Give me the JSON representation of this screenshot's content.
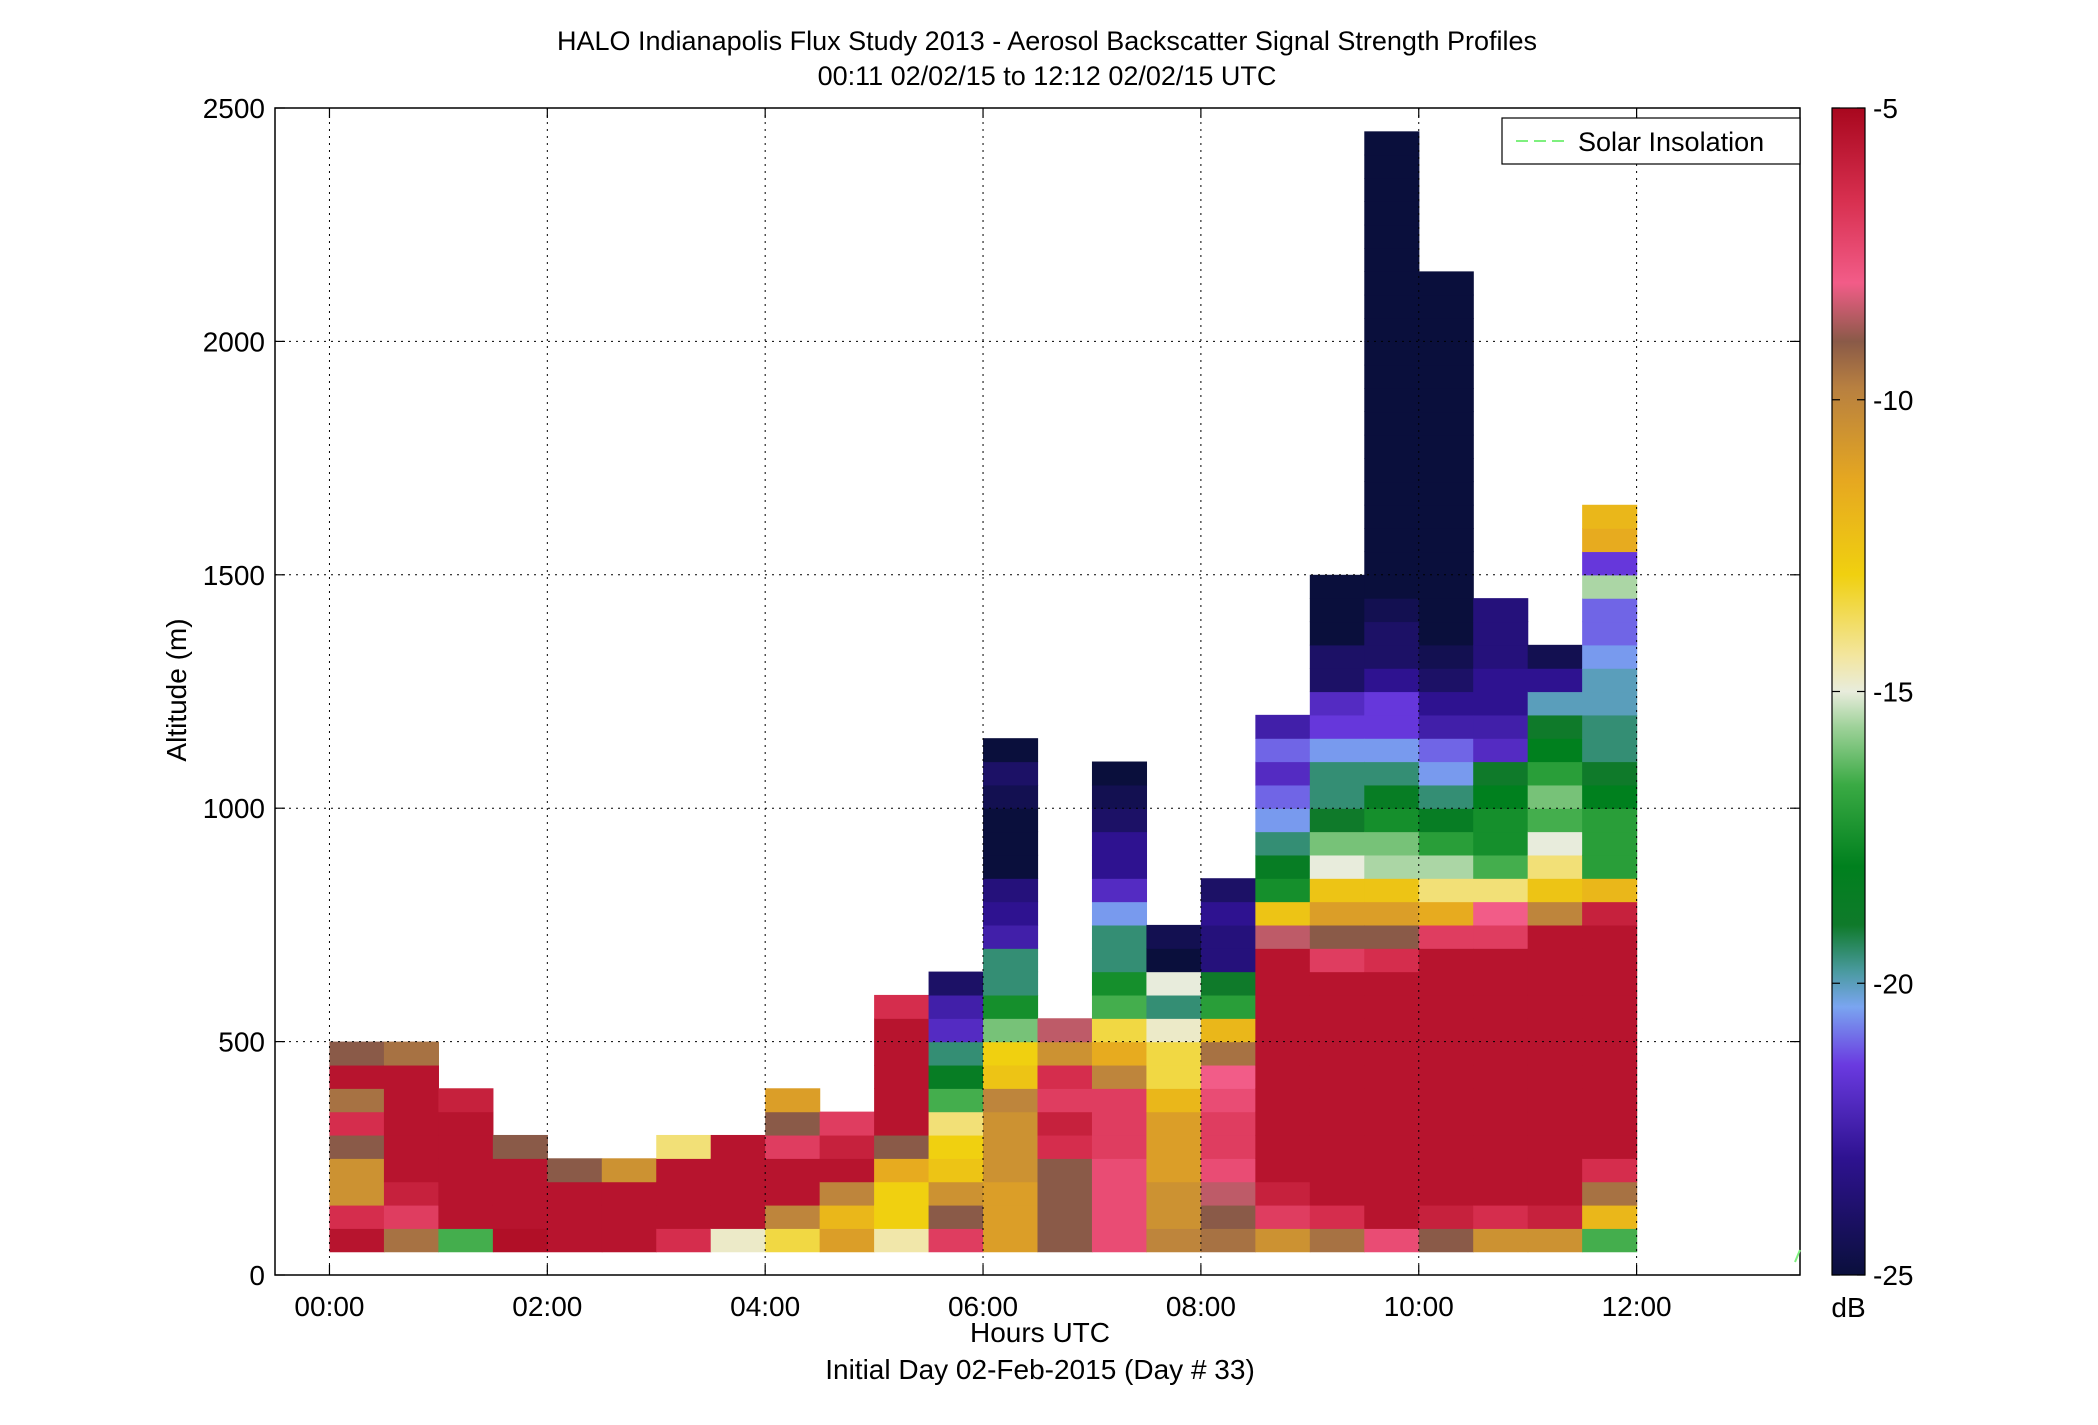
{
  "chart_data": {
    "type": "heatmap",
    "title": "HALO Indianapolis Flux Study 2013 - Aerosol Backscatter Signal Strength Profiles",
    "subtitle": "00:11 02/02/15 to 12:12 02/02/15  UTC",
    "xlabel": "Hours UTC",
    "xlabel2": "Initial Day 02-Feb-2015 (Day # 33)",
    "ylabel": "Altitude (m)",
    "xlim": [
      -0.5,
      13.5
    ],
    "ylim": [
      0,
      2500
    ],
    "x_ticks": [
      0,
      2,
      4,
      6,
      8,
      10,
      12
    ],
    "x_tick_labels": [
      "00:00",
      "02:00",
      "04:00",
      "06:00",
      "08:00",
      "10:00",
      "12:00"
    ],
    "y_ticks": [
      0,
      500,
      1000,
      1500,
      2000,
      2500
    ],
    "y_tick_labels": [
      "0",
      "500",
      "1000",
      "1500",
      "2000",
      "2500"
    ],
    "grid": true,
    "legend": {
      "entries": [
        "Solar Insolation"
      ],
      "location": "top-right",
      "color": "#7ef07e"
    },
    "colorbar": {
      "label": "dB",
      "range": [
        -25,
        -5
      ],
      "ticks": [
        -25,
        -20,
        -15,
        -10,
        -5
      ],
      "tick_labels": [
        "-25",
        "-20",
        "-15",
        "-10",
        "-5"
      ]
    },
    "cell_time_step_hours": 0.5,
    "cell_altitude_step_m": 50,
    "altitude_start_m": 50,
    "columns": [
      {
        "t": 0.25,
        "v": [
          -5.5,
          -6.5,
          -10.5,
          -10.5,
          -9,
          -6.5,
          -9.5,
          -5.5,
          -9
        ]
      },
      {
        "t": 0.75,
        "v": [
          -9.5,
          -7,
          -6,
          -5.5,
          -5.5,
          -5.5,
          -5.5,
          -5.5,
          -9.5
        ]
      },
      {
        "t": 1.25,
        "v": [
          -16.5,
          -5.5,
          -5.5,
          -5.5,
          -5.5,
          -5.5,
          -6
        ]
      },
      {
        "t": 1.75,
        "v": [
          -5.3,
          -5.5,
          -5.5,
          -5.5,
          -9
        ]
      },
      {
        "t": 2.25,
        "v": [
          -5.5,
          -5.5,
          -5.5,
          -9
        ]
      },
      {
        "t": 2.75,
        "v": [
          -5.5,
          -5.5,
          -5.5,
          -10.5
        ]
      },
      {
        "t": 3.25,
        "v": [
          -6.5,
          -5.5,
          -5.5,
          -5.5,
          -14
        ]
      },
      {
        "t": 3.75,
        "v": [
          -14.8,
          -5.5,
          -5.5,
          -5.5,
          -5.5
        ]
      },
      {
        "t": 4.25,
        "v": [
          -13.5,
          -10,
          -5.5,
          -5.5,
          -7,
          -9,
          -11
        ]
      },
      {
        "t": 4.75,
        "v": [
          -11,
          -12,
          -10,
          -5.5,
          -6,
          -7
        ]
      },
      {
        "t": 5.25,
        "v": [
          -14.5,
          -13,
          -13,
          -11.5,
          -9,
          -5.5,
          -5.5,
          -5.5,
          -5.5,
          -5.5,
          -6.5
        ]
      },
      {
        "t": 5.75,
        "v": [
          -7,
          -9,
          -10.5,
          -12.5,
          -13,
          -14,
          -16.5,
          -18.5,
          -19.5,
          -22,
          -22.5,
          -24
        ]
      },
      {
        "t": 6.25,
        "v": [
          -11,
          -11,
          -11,
          -10.5,
          -10.5,
          -10.5,
          -10,
          -12.5,
          -13,
          -16,
          -17.5,
          -19.5,
          -19.5,
          -22.5,
          -23,
          -23.5,
          -25,
          -25,
          -25,
          -24.5,
          -24,
          -25
        ]
      },
      {
        "t": 6.75,
        "v": [
          -9,
          -9,
          -9,
          -9,
          -6.5,
          -6,
          -7,
          -6.5,
          -10.5,
          -8.5
        ]
      },
      {
        "t": 7.25,
        "v": [
          -7.5,
          -7.5,
          -7.5,
          -7.5,
          -7,
          -7,
          -7,
          -10,
          -11.5,
          -13.5,
          -16.5,
          -17.5,
          -19.5,
          -19.5,
          -20.5,
          -22,
          -23,
          -23,
          -24,
          -24.5,
          -25
        ]
      },
      {
        "t": 7.75,
        "v": [
          -10,
          -10.5,
          -10.5,
          -11,
          -11,
          -11,
          -12,
          -13.5,
          -13.5,
          -14.8,
          -19.5,
          -15,
          -25,
          -24.5
        ]
      },
      {
        "t": 8.25,
        "v": [
          -9.5,
          -9,
          -8.5,
          -7.5,
          -7,
          -7,
          -7.5,
          -8,
          -9.5,
          -12,
          -17,
          -19,
          -23.5,
          -23.5,
          -23,
          -24
        ]
      },
      {
        "t": 8.75,
        "v": [
          -10.5,
          -7,
          -6,
          -5.5,
          -5.5,
          -5.5,
          -5.5,
          -5.5,
          -5.5,
          -5.5,
          -5.5,
          -5.5,
          -5.5,
          -8.5,
          -12.5,
          -17.5,
          -18.5,
          -19.5,
          -20.5,
          -21,
          -22,
          -21,
          -22.5
        ]
      },
      {
        "t": 9.25,
        "v": [
          -9.5,
          -6.5,
          -5.5,
          -5.5,
          -5.5,
          -5.5,
          -5.5,
          -5.5,
          -5.5,
          -5.5,
          -5.5,
          -5.5,
          -7,
          -9,
          -11,
          -12.5,
          -15,
          -16,
          -19,
          -19.5,
          -19.5,
          -20.5,
          -21.5,
          -22,
          -24,
          -24,
          -25,
          -25,
          -25
        ]
      },
      {
        "t": 9.75,
        "v": [
          -7.5,
          -5.5,
          -5.5,
          -5.5,
          -5.5,
          -5.5,
          -5.5,
          -5.5,
          -5.5,
          -5.5,
          -5.5,
          -5.5,
          -6.5,
          -9,
          -11,
          -12.5,
          -15.5,
          -16,
          -17.5,
          -18.5,
          -19.5,
          -20.5,
          -21.5,
          -21.5,
          -23,
          -24,
          -24,
          -24.5,
          -25,
          -25,
          -25,
          -25,
          -25,
          -25,
          -25,
          -25,
          -25,
          -25,
          -25,
          -25,
          -25,
          -25,
          -25,
          -25,
          -25,
          -25,
          -25,
          -25
        ]
      },
      {
        "t": 10.25,
        "v": [
          -9,
          -6,
          -5.5,
          -5.5,
          -5.5,
          -5.5,
          -5.5,
          -5.5,
          -5.5,
          -5.5,
          -5.5,
          -5.5,
          -5.5,
          -7,
          -11.5,
          -14,
          -15.5,
          -17,
          -18.5,
          -19.5,
          -20.5,
          -21,
          -22.5,
          -23,
          -24,
          -24.5,
          -25,
          -25,
          -25,
          -25,
          -25,
          -25,
          -25,
          -25,
          -25,
          -25,
          -25,
          -25,
          -25,
          -25,
          -25,
          -25
        ]
      },
      {
        "t": 10.75,
        "v": [
          -10.5,
          -6.5,
          -5.5,
          -5.5,
          -5.5,
          -5.5,
          -5.5,
          -5.5,
          -5.5,
          -5.5,
          -5.5,
          -5.5,
          -5.5,
          -7,
          -8,
          -14,
          -16.5,
          -17.5,
          -17.5,
          -18,
          -19,
          -22,
          -22.5,
          -23,
          -23,
          -23.5,
          -23.5,
          -23.5
        ]
      },
      {
        "t": 11.25,
        "v": [
          -10.5,
          -6,
          -5.5,
          -5.5,
          -5.5,
          -5.5,
          -5.5,
          -5.5,
          -5.5,
          -5.5,
          -5.5,
          -5.5,
          -5.5,
          -5.5,
          -10,
          -12.5,
          -14,
          -15,
          -16.5,
          -16,
          -17,
          -18,
          -19,
          -20,
          -23,
          -24.5
        ]
      },
      {
        "t": 11.75,
        "v": [
          -16.5,
          -12,
          -9.5,
          -6.5,
          -5.5,
          -5.5,
          -5.5,
          -5.5,
          -5.5,
          -5.5,
          -5.5,
          -5.5,
          -5.5,
          -5.5,
          -6,
          -12,
          -17,
          -17,
          -17,
          -18,
          -19,
          -19.5,
          -19.5,
          -20,
          -20,
          -20.5,
          -21,
          -21,
          -15.5,
          -21.5,
          -11.5,
          -12
        ]
      }
    ]
  }
}
